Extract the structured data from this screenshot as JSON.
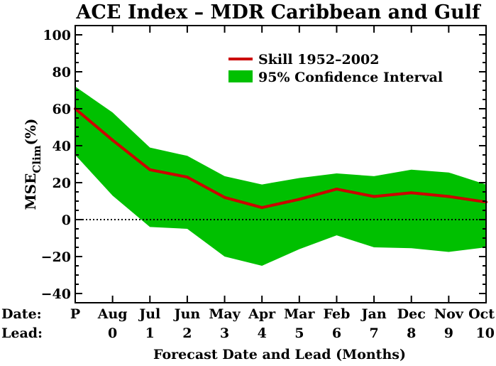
{
  "chart_data": {
    "type": "line",
    "title": "ACE Index – MDR Caribbean and Gulf",
    "xlabel": "Forecast Date and Lead (Months)",
    "ylabel": {
      "main": "MSE",
      "sub": "Clim",
      "unit": "(%)"
    },
    "row_labels": {
      "date": "Date:",
      "lead": "Lead:"
    },
    "categories": [
      "P",
      "Aug",
      "Jul",
      "Jun",
      "May",
      "Apr",
      "Mar",
      "Feb",
      "Jan",
      "Dec",
      "Nov",
      "Oct"
    ],
    "leads": [
      "",
      "0",
      "1",
      "2",
      "3",
      "4",
      "5",
      "6",
      "7",
      "8",
      "9",
      "10"
    ],
    "ylim": [
      -45,
      105
    ],
    "yticks": [
      -40,
      -20,
      0,
      20,
      40,
      60,
      80,
      100
    ],
    "ytick_labels": [
      "−40",
      "−20",
      "0",
      "20",
      "40",
      "60",
      "80",
      "100"
    ],
    "zero_line": true,
    "legend_position": "top-right",
    "series": [
      {
        "name": "Skill 1952–2002",
        "color": "#cc0000",
        "values": [
          60,
          43,
          27,
          23,
          12,
          6.5,
          11,
          16.5,
          12.5,
          14.5,
          12.5,
          9.5
        ]
      }
    ],
    "band": {
      "name": "95% Confidence Interval",
      "color": "#00c000",
      "upper": [
        72,
        58,
        39,
        34.5,
        23.5,
        19,
        22.5,
        25,
        23.5,
        27,
        25.5,
        19
      ],
      "lower": [
        35,
        13,
        -4,
        -5,
        -20,
        -25,
        -16,
        -8.5,
        -15,
        -15.5,
        -17.5,
        -15
      ]
    }
  }
}
